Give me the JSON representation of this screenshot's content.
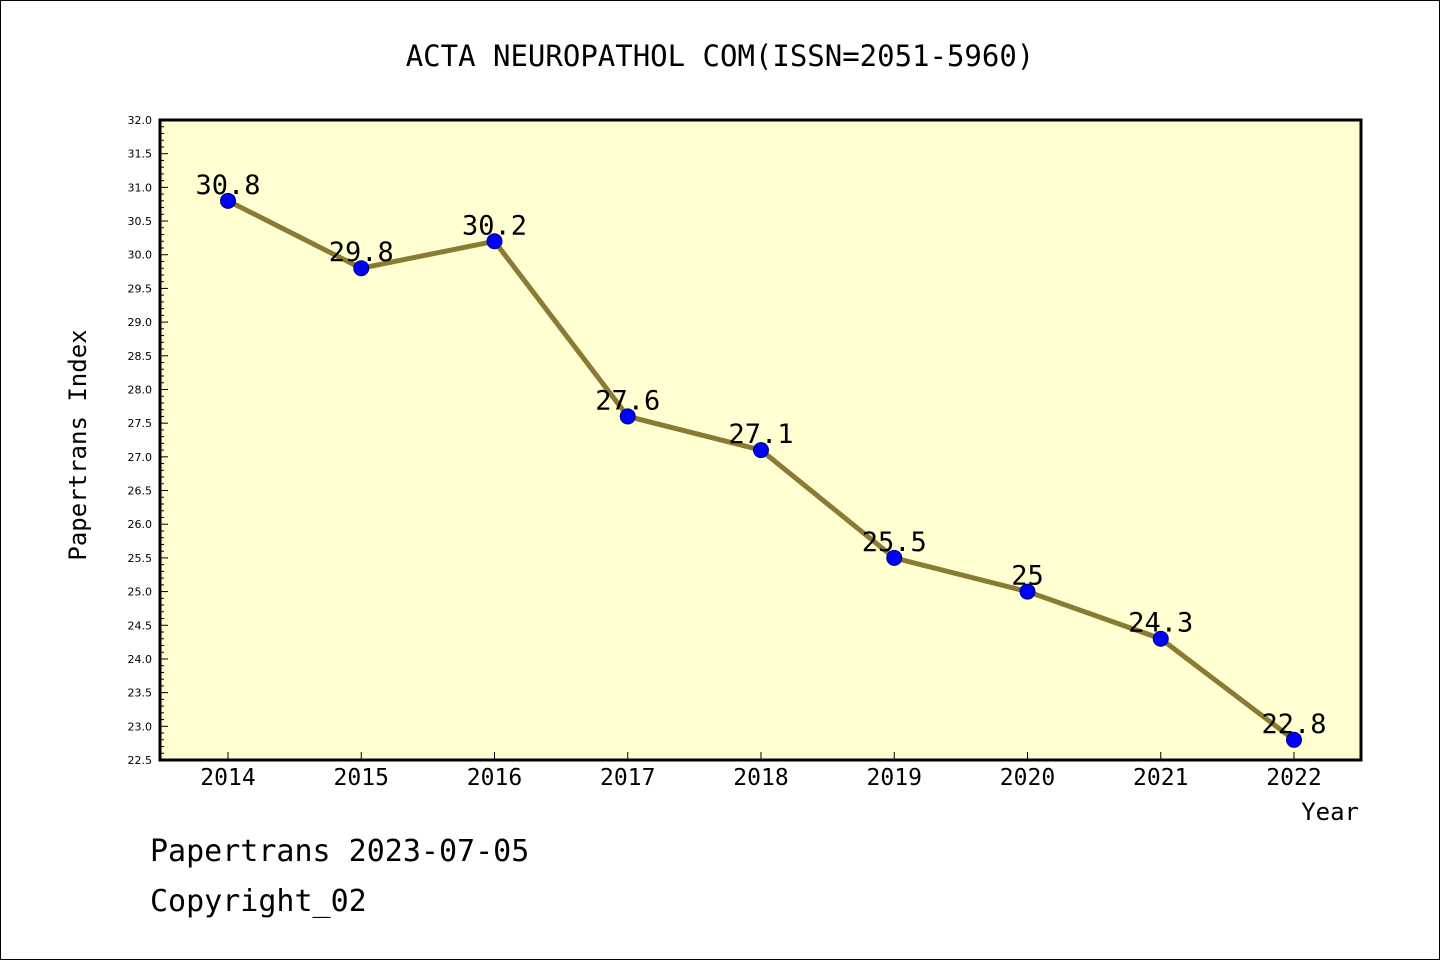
{
  "chart_data": {
    "type": "line",
    "title": "ACTA NEUROPATHOL COM(ISSN=2051-5960)",
    "xlabel": "Year",
    "ylabel": "Papertrans Index",
    "categories": [
      "2014",
      "2015",
      "2016",
      "2017",
      "2018",
      "2019",
      "2020",
      "2021",
      "2022"
    ],
    "series": [
      {
        "values": [
          30.8,
          29.8,
          30.2,
          27.6,
          27.1,
          25.5,
          25.0,
          24.3,
          22.8
        ],
        "data_labels": [
          "30.8",
          "29.8",
          "30.2",
          "27.6",
          "27.1",
          "25.5",
          "25",
          "24.3",
          "22.8"
        ]
      }
    ],
    "ylim": [
      22.5,
      32.0
    ],
    "yticks": [
      "22.5",
      "23.0",
      "23.5",
      "24.0",
      "24.5",
      "25.0",
      "25.5",
      "26.0",
      "26.5",
      "27.0",
      "27.5",
      "28.0",
      "28.5",
      "29.0",
      "29.5",
      "30.0",
      "30.5",
      "31.0",
      "31.5",
      "32.0"
    ],
    "grid": false,
    "legend": "none",
    "colors": {
      "plot_background": "#ffffd2",
      "line": "#8b7a32",
      "marker": "#0000ff",
      "marker_edge": "#000080",
      "axes": "#000000"
    }
  },
  "footer": {
    "line1": "Papertrans 2023-07-05",
    "line2": "Copyright_02"
  }
}
